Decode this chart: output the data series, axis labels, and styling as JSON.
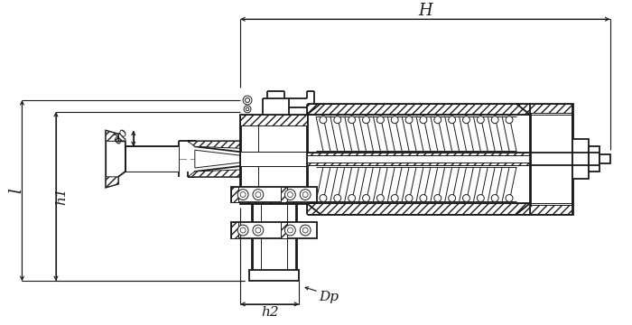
{
  "bg_color": "#ffffff",
  "lc": "#1a1a1a",
  "fig_width": 7.0,
  "fig_height": 3.6,
  "dpi": 100,
  "labels": {
    "H": "H",
    "l": "l",
    "h1": "h1",
    "h2": "h2",
    "dp": "dp",
    "Dp": "Dp"
  }
}
